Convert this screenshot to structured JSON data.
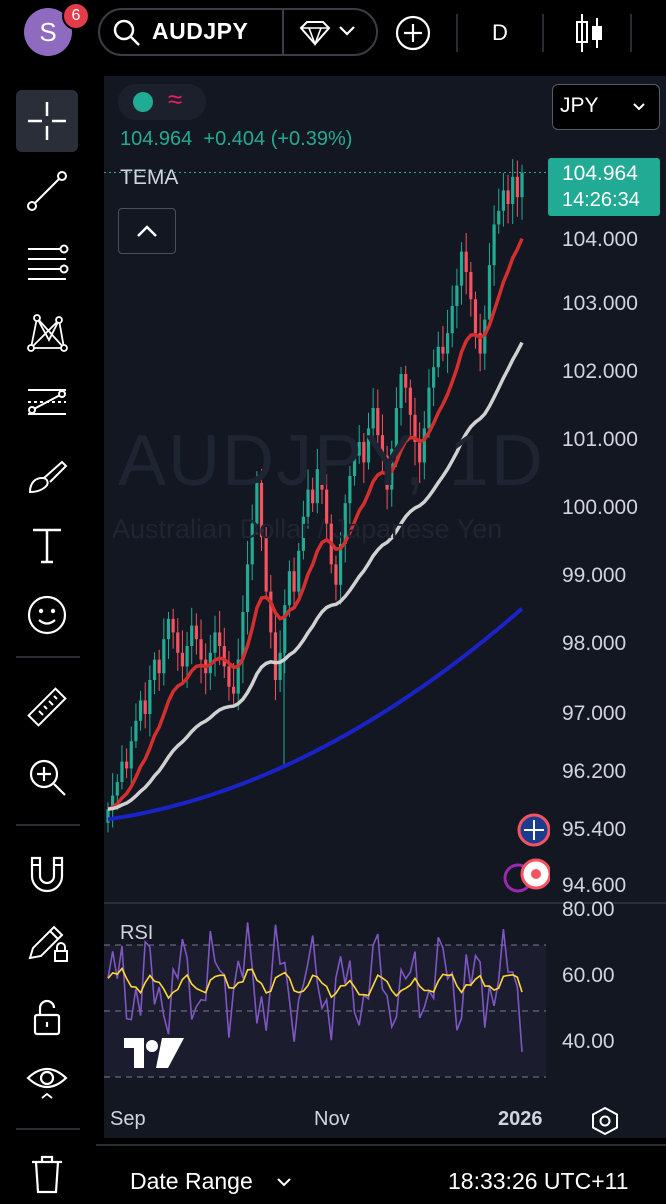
{
  "header": {
    "avatar_letter": "S",
    "notification_count": "6",
    "symbol": "AUDJPY",
    "interval": "D"
  },
  "currency": "JPY",
  "legend": {
    "price_line": "104.964  +0.404 (+0.39%)",
    "indicator": "TEMA"
  },
  "watermark": {
    "ticker": "AUDJPY, 1D",
    "description": "Australian Dollar / Japanese Yen"
  },
  "last_price": {
    "value": "104.964",
    "countdown": "14:26:34"
  },
  "price_axis": [
    "104.000",
    "103.000",
    "102.000",
    "101.000",
    "100.000",
    "99.000",
    "98.000",
    "97.000",
    "96.200",
    "95.400",
    "94.600"
  ],
  "rsi": {
    "label": "RSI",
    "axis": [
      "80.00",
      "60.00",
      "40.00"
    ],
    "upper_band": 70,
    "lower_band": 30
  },
  "time_axis": [
    "Sep",
    "Nov",
    "2026"
  ],
  "footer": {
    "date_range": "Date Range",
    "clock": "18:33:26 UTC+11"
  },
  "tools": [
    "crosshair",
    "trend-line",
    "fib-retracement",
    "patterns",
    "prediction",
    "brush",
    "text",
    "emoji",
    "ruler",
    "zoom-in",
    "magnet",
    "lock-drawing",
    "lock",
    "eye",
    "trash"
  ],
  "colors": {
    "up": "#22ab94",
    "down": "#f7525f",
    "tema_fast": "#d32f2f",
    "tema_mid": "#d1d1d1",
    "tema_slow": "#1a23c8",
    "rsi_line": "#7e57c2",
    "rsi_ma": "#fdd835"
  }
}
